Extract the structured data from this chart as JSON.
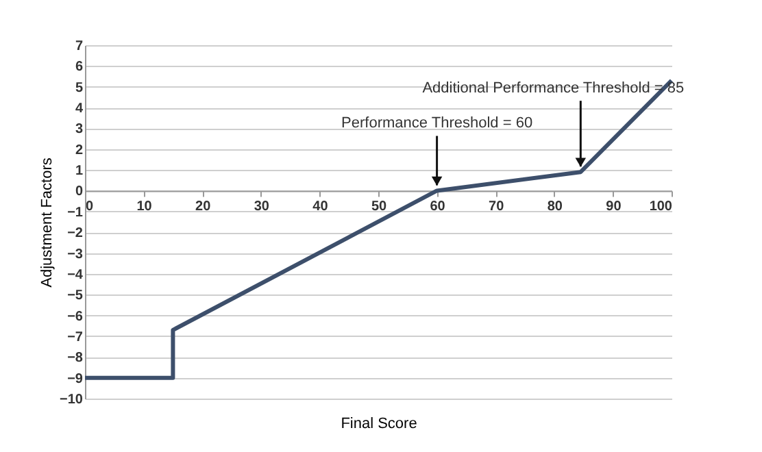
{
  "chart_data": {
    "type": "line",
    "xlabel": "Final Score",
    "ylabel": "Adjustment Factors",
    "x": [
      0,
      15,
      15,
      60,
      84.5,
      100
    ],
    "series": [
      {
        "color": "#3d4f6b",
        "values": [
          -9,
          -9,
          -6.7,
          0,
          0.9,
          5.3
        ]
      }
    ],
    "xlim": [
      0,
      100
    ],
    "xticks": [
      0,
      10,
      20,
      30,
      40,
      50,
      60,
      70,
      80,
      90,
      100
    ],
    "ylim": [
      -10,
      7
    ],
    "yticks": [
      -10,
      -9,
      -8,
      -7,
      -6,
      -5,
      -4,
      -3,
      -2,
      -1,
      0,
      1,
      2,
      3,
      4,
      5,
      6,
      7
    ],
    "grid": "y",
    "marker": "none",
    "line_style": "solid",
    "legend": false,
    "annotations": [
      {
        "text": "Performance Threshold = 60",
        "x": 60,
        "y": 0
      },
      {
        "text": "Additional Performance Threshold = 85",
        "x": 84.5,
        "y": 0.9
      }
    ]
  }
}
